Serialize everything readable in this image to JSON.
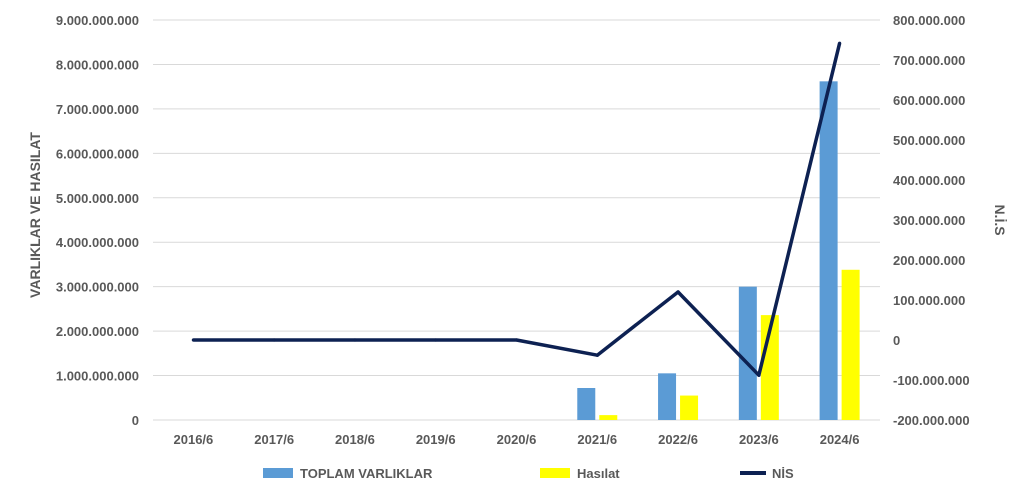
{
  "chart_data": {
    "type": "bar",
    "categories": [
      "2016/6",
      "2017/6",
      "2018/6",
      "2019/6",
      "2020/6",
      "2021/6",
      "2022/6",
      "2023/6",
      "2024/6"
    ],
    "series": [
      {
        "name": "TOPLAM VARLIKLAR",
        "type": "bar",
        "axis": "left",
        "color": "#5b9bd5",
        "values": [
          null,
          null,
          null,
          null,
          null,
          720000000,
          1050000000,
          3000000000,
          7620000000
        ]
      },
      {
        "name": "Hasılat",
        "type": "bar",
        "axis": "left",
        "color": "#ffff00",
        "values": [
          null,
          null,
          null,
          null,
          null,
          110000000,
          550000000,
          2360000000,
          3380000000
        ]
      },
      {
        "name": "NİS",
        "type": "line",
        "axis": "right",
        "color": "#0d2152",
        "values": [
          0,
          0,
          0,
          0,
          0,
          -38000000,
          120000000,
          -88000000,
          742000000
        ]
      }
    ],
    "ylabel": "VARLIKLAR VE HASILAT",
    "ylabel_right": "N.İ.S",
    "ylim": [
      0,
      9000000000
    ],
    "ylim_right": [
      -200000000,
      800000000
    ],
    "yticks": [
      "0",
      "1.000.000.000",
      "2.000.000.000",
      "3.000.000.000",
      "4.000.000.000",
      "5.000.000.000",
      "6.000.000.000",
      "7.000.000.000",
      "8.000.000.000",
      "9.000.000.000"
    ],
    "yticks_right": [
      "-200.000.000",
      "-100.000.000",
      "0",
      "100.000.000",
      "200.000.000",
      "300.000.000",
      "400.000.000",
      "500.000.000",
      "600.000.000",
      "700.000.000",
      "800.000.000"
    ],
    "grid": true,
    "legend_position": "bottom"
  }
}
